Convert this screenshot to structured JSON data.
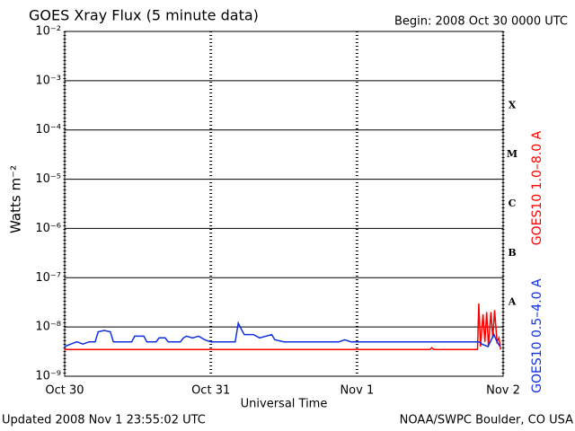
{
  "chart_data": {
    "type": "line",
    "title": "GOES Xray Flux (5 minute data)",
    "subtitle": "Begin:  2008 Oct 30 0000 UTC",
    "x_label": "Universal Time",
    "y_label": "Watts m⁻²",
    "log_y": true,
    "grid": true,
    "xlim": [
      0,
      72
    ],
    "xticks": [
      {
        "value": 0,
        "label": "Oct 30"
      },
      {
        "value": 24,
        "label": "Oct 31"
      },
      {
        "value": 48,
        "label": "Nov 1"
      },
      {
        "value": 72,
        "label": "Nov 2"
      }
    ],
    "ylim": [
      1e-09,
      0.01
    ],
    "yticks": [
      {
        "value": 1e-09,
        "label": "10⁻⁹"
      },
      {
        "value": 1e-08,
        "label": "10⁻⁸"
      },
      {
        "value": 1e-07,
        "label": "10⁻⁷"
      },
      {
        "value": 1e-06,
        "label": "10⁻⁶"
      },
      {
        "value": 1e-05,
        "label": "10⁻⁵"
      },
      {
        "value": 0.0001,
        "label": "10⁻⁴"
      },
      {
        "value": 0.001,
        "label": "10⁻³"
      },
      {
        "value": 0.01,
        "label": "10⁻²"
      }
    ],
    "class_labels": [
      "A",
      "B",
      "C",
      "M",
      "X"
    ],
    "series": [
      {
        "name": "GOES10 1.0–8.0 A",
        "color": "#ff0000",
        "x": [
          0,
          60,
          60.3,
          60.6,
          67.8,
          68,
          68.3,
          68.7,
          69,
          69.3,
          69.6,
          70,
          70.3,
          70.6,
          71,
          71.3,
          71.6
        ],
        "values": [
          3.5e-09,
          3.5e-09,
          3.8e-09,
          3.5e-09,
          3.5e-09,
          3e-08,
          4e-09,
          1.8e-08,
          5e-09,
          2e-08,
          4e-09,
          2e-08,
          6e-09,
          2.2e-08,
          5e-09,
          6e-09,
          3.5e-09
        ]
      },
      {
        "name": "GOES10 0.5–4.0 A",
        "color": "#1030e0",
        "x": [
          0,
          1,
          2,
          3,
          4,
          5,
          5.5,
          6.5,
          7.5,
          8,
          11,
          11.5,
          13,
          13.5,
          15,
          15.5,
          16.5,
          17,
          19,
          19.5,
          20,
          21,
          22,
          23,
          24,
          28,
          28.5,
          29,
          29.5,
          31,
          32,
          34,
          34.5,
          36,
          45,
          46,
          47,
          68,
          68.5,
          69.5,
          70.5,
          71,
          71.5
        ],
        "values": [
          4e-09,
          4.5e-09,
          5e-09,
          4.5e-09,
          5e-09,
          5e-09,
          8e-09,
          8.5e-09,
          8e-09,
          5e-09,
          5e-09,
          6.5e-09,
          6.5e-09,
          5e-09,
          5e-09,
          6e-09,
          6e-09,
          5e-09,
          5e-09,
          6e-09,
          6.5e-09,
          6e-09,
          6.5e-09,
          5.5e-09,
          5e-09,
          5e-09,
          1.2e-08,
          9e-09,
          7e-09,
          7e-09,
          6e-09,
          7e-09,
          5.5e-09,
          5e-09,
          5e-09,
          5.5e-09,
          5e-09,
          5e-09,
          4.5e-09,
          4e-09,
          7e-09,
          5e-09,
          4e-09
        ]
      }
    ],
    "footer_left": "Updated 2008 Nov  1 23:55:02 UTC",
    "footer_right": "NOAA/SWPC Boulder, CO USA"
  }
}
